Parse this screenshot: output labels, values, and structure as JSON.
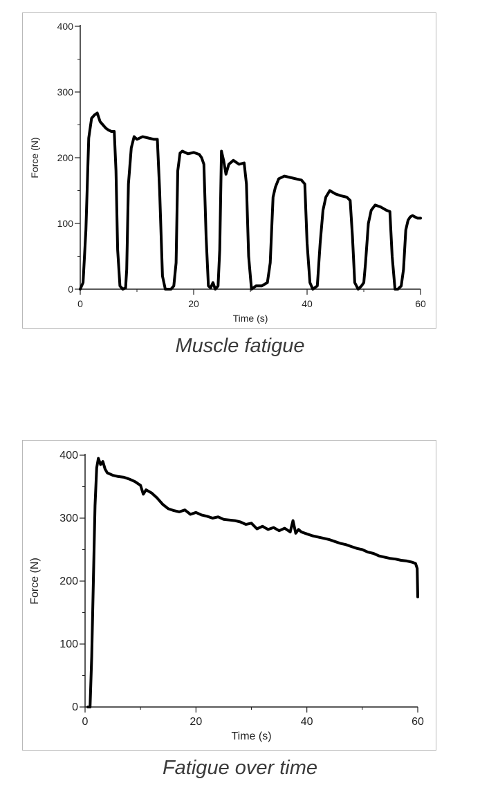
{
  "figures": [
    {
      "caption": "Muscle fatigue"
    },
    {
      "caption": "Fatigue over time"
    }
  ],
  "chart_data": [
    {
      "type": "line",
      "title": "",
      "xlabel": "Time (s)",
      "ylabel": "Force (N)",
      "xlim": [
        0,
        60
      ],
      "ylim": [
        0,
        400
      ],
      "xticks": [
        0,
        20,
        40,
        60
      ],
      "yticks": [
        0,
        100,
        200,
        300,
        400
      ],
      "grid": false,
      "series": [
        {
          "x": [
            0,
            0.5,
            1.0,
            1.5,
            2,
            2.5,
            3,
            3.5,
            4,
            4.5,
            5,
            5.5,
            6.0,
            6.3,
            6.6,
            7.0,
            7.5,
            8.0,
            8.2,
            8.5,
            9,
            9.5,
            10,
            11,
            12,
            13,
            13.6,
            14.0,
            14.5,
            15,
            16,
            16.5,
            16.9,
            17.2,
            17.6,
            18,
            19,
            20,
            21,
            21.4,
            21.8,
            22.2,
            22.6,
            23,
            23.4,
            23.8,
            24.3,
            24.6,
            24.9,
            25.3,
            25.7,
            26.2,
            27,
            28,
            28.9,
            29.3,
            29.7,
            30.2,
            31,
            32,
            33,
            33.5,
            34.0,
            34.4,
            35,
            36,
            37,
            38,
            39,
            39.6,
            40.0,
            40.5,
            41,
            41.8,
            42.3,
            42.8,
            43.3,
            44,
            45,
            46,
            47,
            47.6,
            48.0,
            48.4,
            49,
            49.6,
            50.0,
            50.3,
            50.8,
            51.3,
            52,
            53,
            54,
            54.6,
            55.0,
            55.5,
            56,
            56.6,
            57.0,
            57.4,
            57.8,
            58.2,
            58.6,
            59,
            59.5,
            60
          ],
          "y": [
            0,
            10,
            90,
            230,
            260,
            265,
            268,
            255,
            250,
            245,
            242,
            240,
            240,
            180,
            60,
            5,
            0,
            2,
            30,
            160,
            215,
            232,
            228,
            232,
            230,
            228,
            228,
            150,
            20,
            0,
            0,
            5,
            40,
            180,
            207,
            210,
            206,
            208,
            205,
            200,
            190,
            80,
            5,
            2,
            10,
            0,
            5,
            60,
            210,
            195,
            175,
            190,
            196,
            190,
            192,
            160,
            50,
            0,
            5,
            5,
            10,
            40,
            140,
            155,
            168,
            172,
            170,
            168,
            166,
            160,
            70,
            10,
            0,
            5,
            70,
            120,
            140,
            150,
            145,
            142,
            140,
            135,
            80,
            10,
            0,
            5,
            10,
            40,
            100,
            120,
            128,
            125,
            120,
            118,
            50,
            0,
            0,
            5,
            30,
            90,
            105,
            110,
            112,
            110,
            108,
            108
          ]
        }
      ]
    },
    {
      "type": "line",
      "title": "",
      "xlabel": "Time (s)",
      "ylabel": "Force (N)",
      "xlim": [
        0,
        60
      ],
      "ylim": [
        0,
        400
      ],
      "xticks": [
        0,
        20,
        40,
        60
      ],
      "yticks": [
        0,
        100,
        200,
        300,
        400
      ],
      "grid": false,
      "series": [
        {
          "x": [
            0.5,
            0.9,
            1.2,
            1.5,
            1.8,
            2.1,
            2.4,
            2.8,
            3.2,
            3.6,
            4,
            5,
            6,
            7,
            8,
            9,
            10,
            10.5,
            11,
            12,
            13,
            14,
            15,
            16,
            17,
            18,
            19,
            20,
            21,
            22,
            23,
            24,
            25,
            26,
            27,
            28,
            29,
            30,
            31,
            32,
            33,
            34,
            35,
            36,
            37,
            37.5,
            38,
            38.5,
            39,
            40,
            41,
            42,
            43,
            44,
            45,
            46,
            47,
            48,
            49,
            50,
            51,
            52,
            53,
            54,
            55,
            56,
            57,
            58,
            59,
            59.6,
            59.9,
            60
          ],
          "y": [
            0,
            0,
            80,
            200,
            320,
            380,
            395,
            385,
            390,
            378,
            372,
            368,
            366,
            365,
            362,
            358,
            352,
            338,
            345,
            340,
            332,
            322,
            315,
            312,
            310,
            313,
            306,
            309,
            305,
            303,
            300,
            302,
            298,
            297,
            296,
            294,
            290,
            292,
            283,
            287,
            282,
            285,
            280,
            284,
            278,
            296,
            276,
            282,
            278,
            275,
            272,
            270,
            268,
            266,
            263,
            260,
            258,
            255,
            252,
            250,
            246,
            244,
            240,
            238,
            236,
            235,
            233,
            232,
            230,
            228,
            220,
            175
          ]
        }
      ]
    }
  ]
}
